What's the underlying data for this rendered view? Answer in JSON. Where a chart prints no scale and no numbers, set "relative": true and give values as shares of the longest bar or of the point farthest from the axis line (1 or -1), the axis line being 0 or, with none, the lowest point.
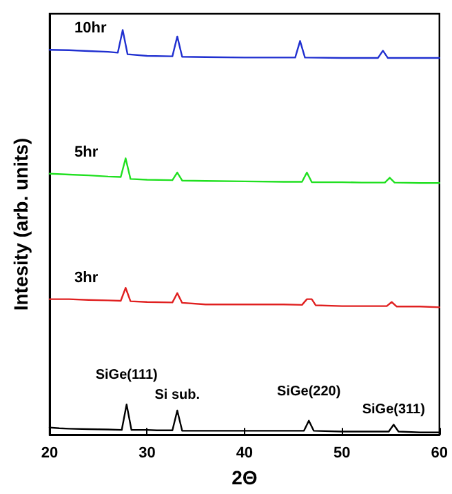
{
  "chart_data": {
    "type": "line",
    "relative": true,
    "xlabel": "2Θ",
    "ylabel": "Intesity (arb. units)",
    "xlim": [
      20,
      60
    ],
    "xticks": [
      20,
      30,
      40,
      50,
      60
    ],
    "grid": false,
    "marker": "none",
    "line_style": "solid",
    "series": [
      {
        "color": "#000000",
        "x": [
          20,
          21,
          22,
          24,
          26,
          27.4,
          27.9,
          28.4,
          30,
          31,
          32.6,
          33.1,
          33.6,
          36,
          40,
          44,
          46.1,
          46.6,
          47.1,
          50,
          52,
          54.8,
          55.3,
          55.8,
          58,
          60
        ],
        "values": [
          0.018,
          0.016,
          0.015,
          0.014,
          0.013,
          0.012,
          0.075,
          0.012,
          0.012,
          0.011,
          0.011,
          0.06,
          0.01,
          0.01,
          0.01,
          0.01,
          0.01,
          0.035,
          0.01,
          0.008,
          0.008,
          0.008,
          0.025,
          0.008,
          0.006,
          0.006
        ]
      },
      {
        "name": "3hr",
        "color": "#e02020",
        "x": [
          20,
          22,
          24,
          26,
          27.3,
          27.8,
          28.3,
          30,
          32.6,
          33.1,
          33.6,
          36,
          40,
          44,
          45.9,
          46.4,
          46.9,
          47.3,
          50,
          52,
          54.6,
          55.1,
          55.6,
          58,
          60
        ],
        "values": [
          0.335,
          0.335,
          0.333,
          0.332,
          0.331,
          0.363,
          0.33,
          0.328,
          0.327,
          0.35,
          0.326,
          0.322,
          0.322,
          0.322,
          0.321,
          0.335,
          0.335,
          0.32,
          0.318,
          0.318,
          0.318,
          0.328,
          0.317,
          0.317,
          0.315
        ]
      },
      {
        "name": "5hr",
        "color": "#20e020",
        "x": [
          20,
          22,
          24,
          26,
          27.3,
          27.8,
          28.3,
          30,
          32.6,
          33.1,
          33.6,
          36,
          40,
          44,
          45.9,
          46.4,
          46.9,
          50,
          52,
          54.4,
          54.9,
          55.4,
          58,
          60
        ],
        "values": [
          0.645,
          0.643,
          0.641,
          0.638,
          0.637,
          0.683,
          0.632,
          0.63,
          0.629,
          0.648,
          0.628,
          0.627,
          0.626,
          0.625,
          0.625,
          0.648,
          0.624,
          0.624,
          0.623,
          0.623,
          0.635,
          0.623,
          0.622,
          0.622
        ]
      },
      {
        "name": "10hr",
        "color": "#2030d0",
        "x": [
          20,
          22,
          24,
          26,
          27,
          27.5,
          28,
          30,
          32.6,
          33.1,
          33.6,
          36,
          40,
          44,
          45.2,
          45.7,
          46.2,
          50,
          52,
          53.7,
          54.2,
          54.7,
          58,
          60
        ],
        "values": [
          0.951,
          0.95,
          0.948,
          0.946,
          0.944,
          1.0,
          0.94,
          0.936,
          0.935,
          0.984,
          0.934,
          0.933,
          0.932,
          0.932,
          0.932,
          0.973,
          0.932,
          0.931,
          0.931,
          0.931,
          0.949,
          0.931,
          0.931,
          0.931
        ]
      }
    ],
    "annotations": [
      {
        "text": "SiGe(111)",
        "x": 27.9,
        "y": 0.075
      },
      {
        "text": "Si sub.",
        "x": 33.1,
        "y": 0.06
      },
      {
        "text": "SiGe(220)",
        "x": 46.6,
        "y": 0.035
      },
      {
        "text": "SiGe(311)",
        "x": 55.3,
        "y": 0.025
      }
    ]
  }
}
